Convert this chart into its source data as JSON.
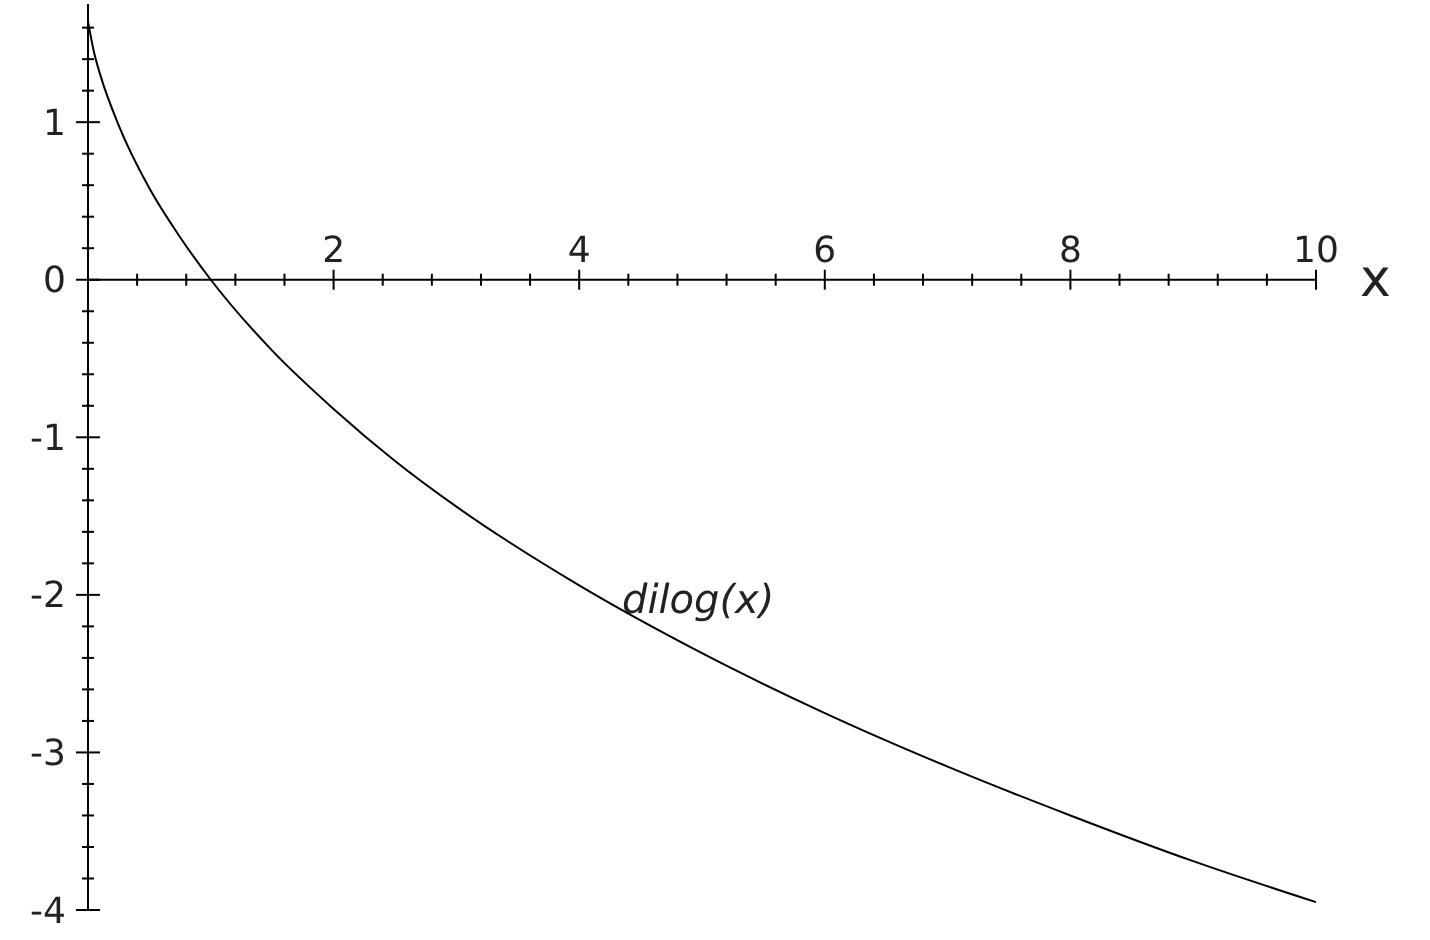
{
  "chart_data": {
    "type": "line",
    "xlabel": "x",
    "xlim": [
      0,
      10
    ],
    "ylim": [
      -4,
      1.75
    ],
    "xticks": [
      {
        "value": 0.4,
        "label": null
      },
      {
        "value": 0.8,
        "label": null
      },
      {
        "value": 1.2,
        "label": null
      },
      {
        "value": 1.6,
        "label": null
      },
      2,
      {
        "value": 2.4,
        "label": null
      },
      {
        "value": 2.8,
        "label": null
      },
      {
        "value": 3.2,
        "label": null
      },
      {
        "value": 3.6,
        "label": null
      },
      4,
      {
        "value": 4.4,
        "label": null
      },
      {
        "value": 4.8,
        "label": null
      },
      {
        "value": 5.2,
        "label": null
      },
      {
        "value": 5.6,
        "label": null
      },
      6,
      {
        "value": 6.4,
        "label": null
      },
      {
        "value": 6.8,
        "label": null
      },
      {
        "value": 7.2,
        "label": null
      },
      {
        "value": 7.6,
        "label": null
      },
      8,
      {
        "value": 8.4,
        "label": null
      },
      {
        "value": 8.8,
        "label": null
      },
      {
        "value": 9.2,
        "label": null
      },
      {
        "value": 9.6,
        "label": null
      },
      10
    ],
    "yticks": [
      -4,
      {
        "value": -3.8,
        "label": null
      },
      {
        "value": -3.6,
        "label": null
      },
      {
        "value": -3.4,
        "label": null
      },
      {
        "value": -3.2,
        "label": null
      },
      -3,
      {
        "value": -2.8,
        "label": null
      },
      {
        "value": -2.6,
        "label": null
      },
      {
        "value": -2.4,
        "label": null
      },
      {
        "value": -2.2,
        "label": null
      },
      -2,
      {
        "value": -1.8,
        "label": null
      },
      {
        "value": -1.6,
        "label": null
      },
      {
        "value": -1.4,
        "label": null
      },
      {
        "value": -1.2,
        "label": null
      },
      -1,
      {
        "value": -0.8,
        "label": null
      },
      {
        "value": -0.6,
        "label": null
      },
      {
        "value": -0.4,
        "label": null
      },
      {
        "value": -0.2,
        "label": null
      },
      0,
      {
        "value": 0.2,
        "label": null
      },
      {
        "value": 0.4,
        "label": null
      },
      {
        "value": 0.6,
        "label": null
      },
      {
        "value": 0.8,
        "label": null
      },
      1,
      {
        "value": 1.2,
        "label": null
      },
      {
        "value": 1.4,
        "label": null
      },
      {
        "value": 1.6,
        "label": null
      }
    ],
    "series": [
      {
        "name": "dilog(x)",
        "color": "#000000",
        "x": [
          0,
          0.05,
          0.1,
          0.25,
          0.5,
          0.75,
          1,
          1.5,
          2,
          2.5,
          3,
          4,
          5,
          6,
          7,
          8,
          9,
          10
        ],
        "values": [
          1.64,
          1.44,
          1.3,
          0.98,
          0.58,
          0.27,
          0,
          -0.45,
          -0.82,
          -1.15,
          -1.44,
          -1.94,
          -2.37,
          -2.75,
          -3.09,
          -3.4,
          -3.69,
          -3.95
        ]
      }
    ]
  }
}
